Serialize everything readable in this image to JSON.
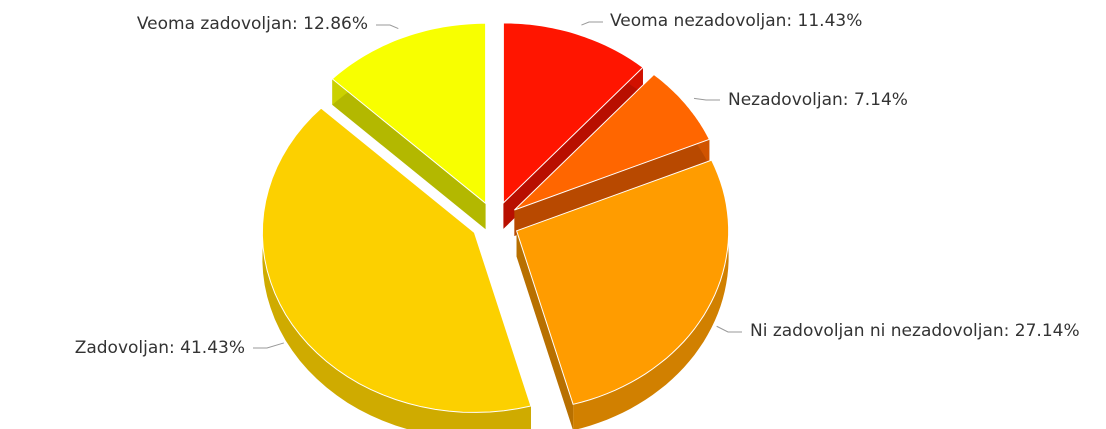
{
  "chart_data": {
    "type": "pie",
    "three_d": true,
    "exploded": true,
    "labels": [
      "Veoma nezadovoljan: 11.43%",
      "Nezadovoljan: 7.14%",
      "Ni zadovoljan ni nezadovoljan: 27.14%",
      "Zadovoljan: 41.43%",
      "Veoma zadovoljan: 12.86%"
    ],
    "values": [
      11.43,
      7.14,
      27.14,
      41.43,
      12.86
    ],
    "colors": [
      "#ff1500",
      "#ff6600",
      "#ff9c00",
      "#fcd000",
      "#f8ff00"
    ]
  }
}
